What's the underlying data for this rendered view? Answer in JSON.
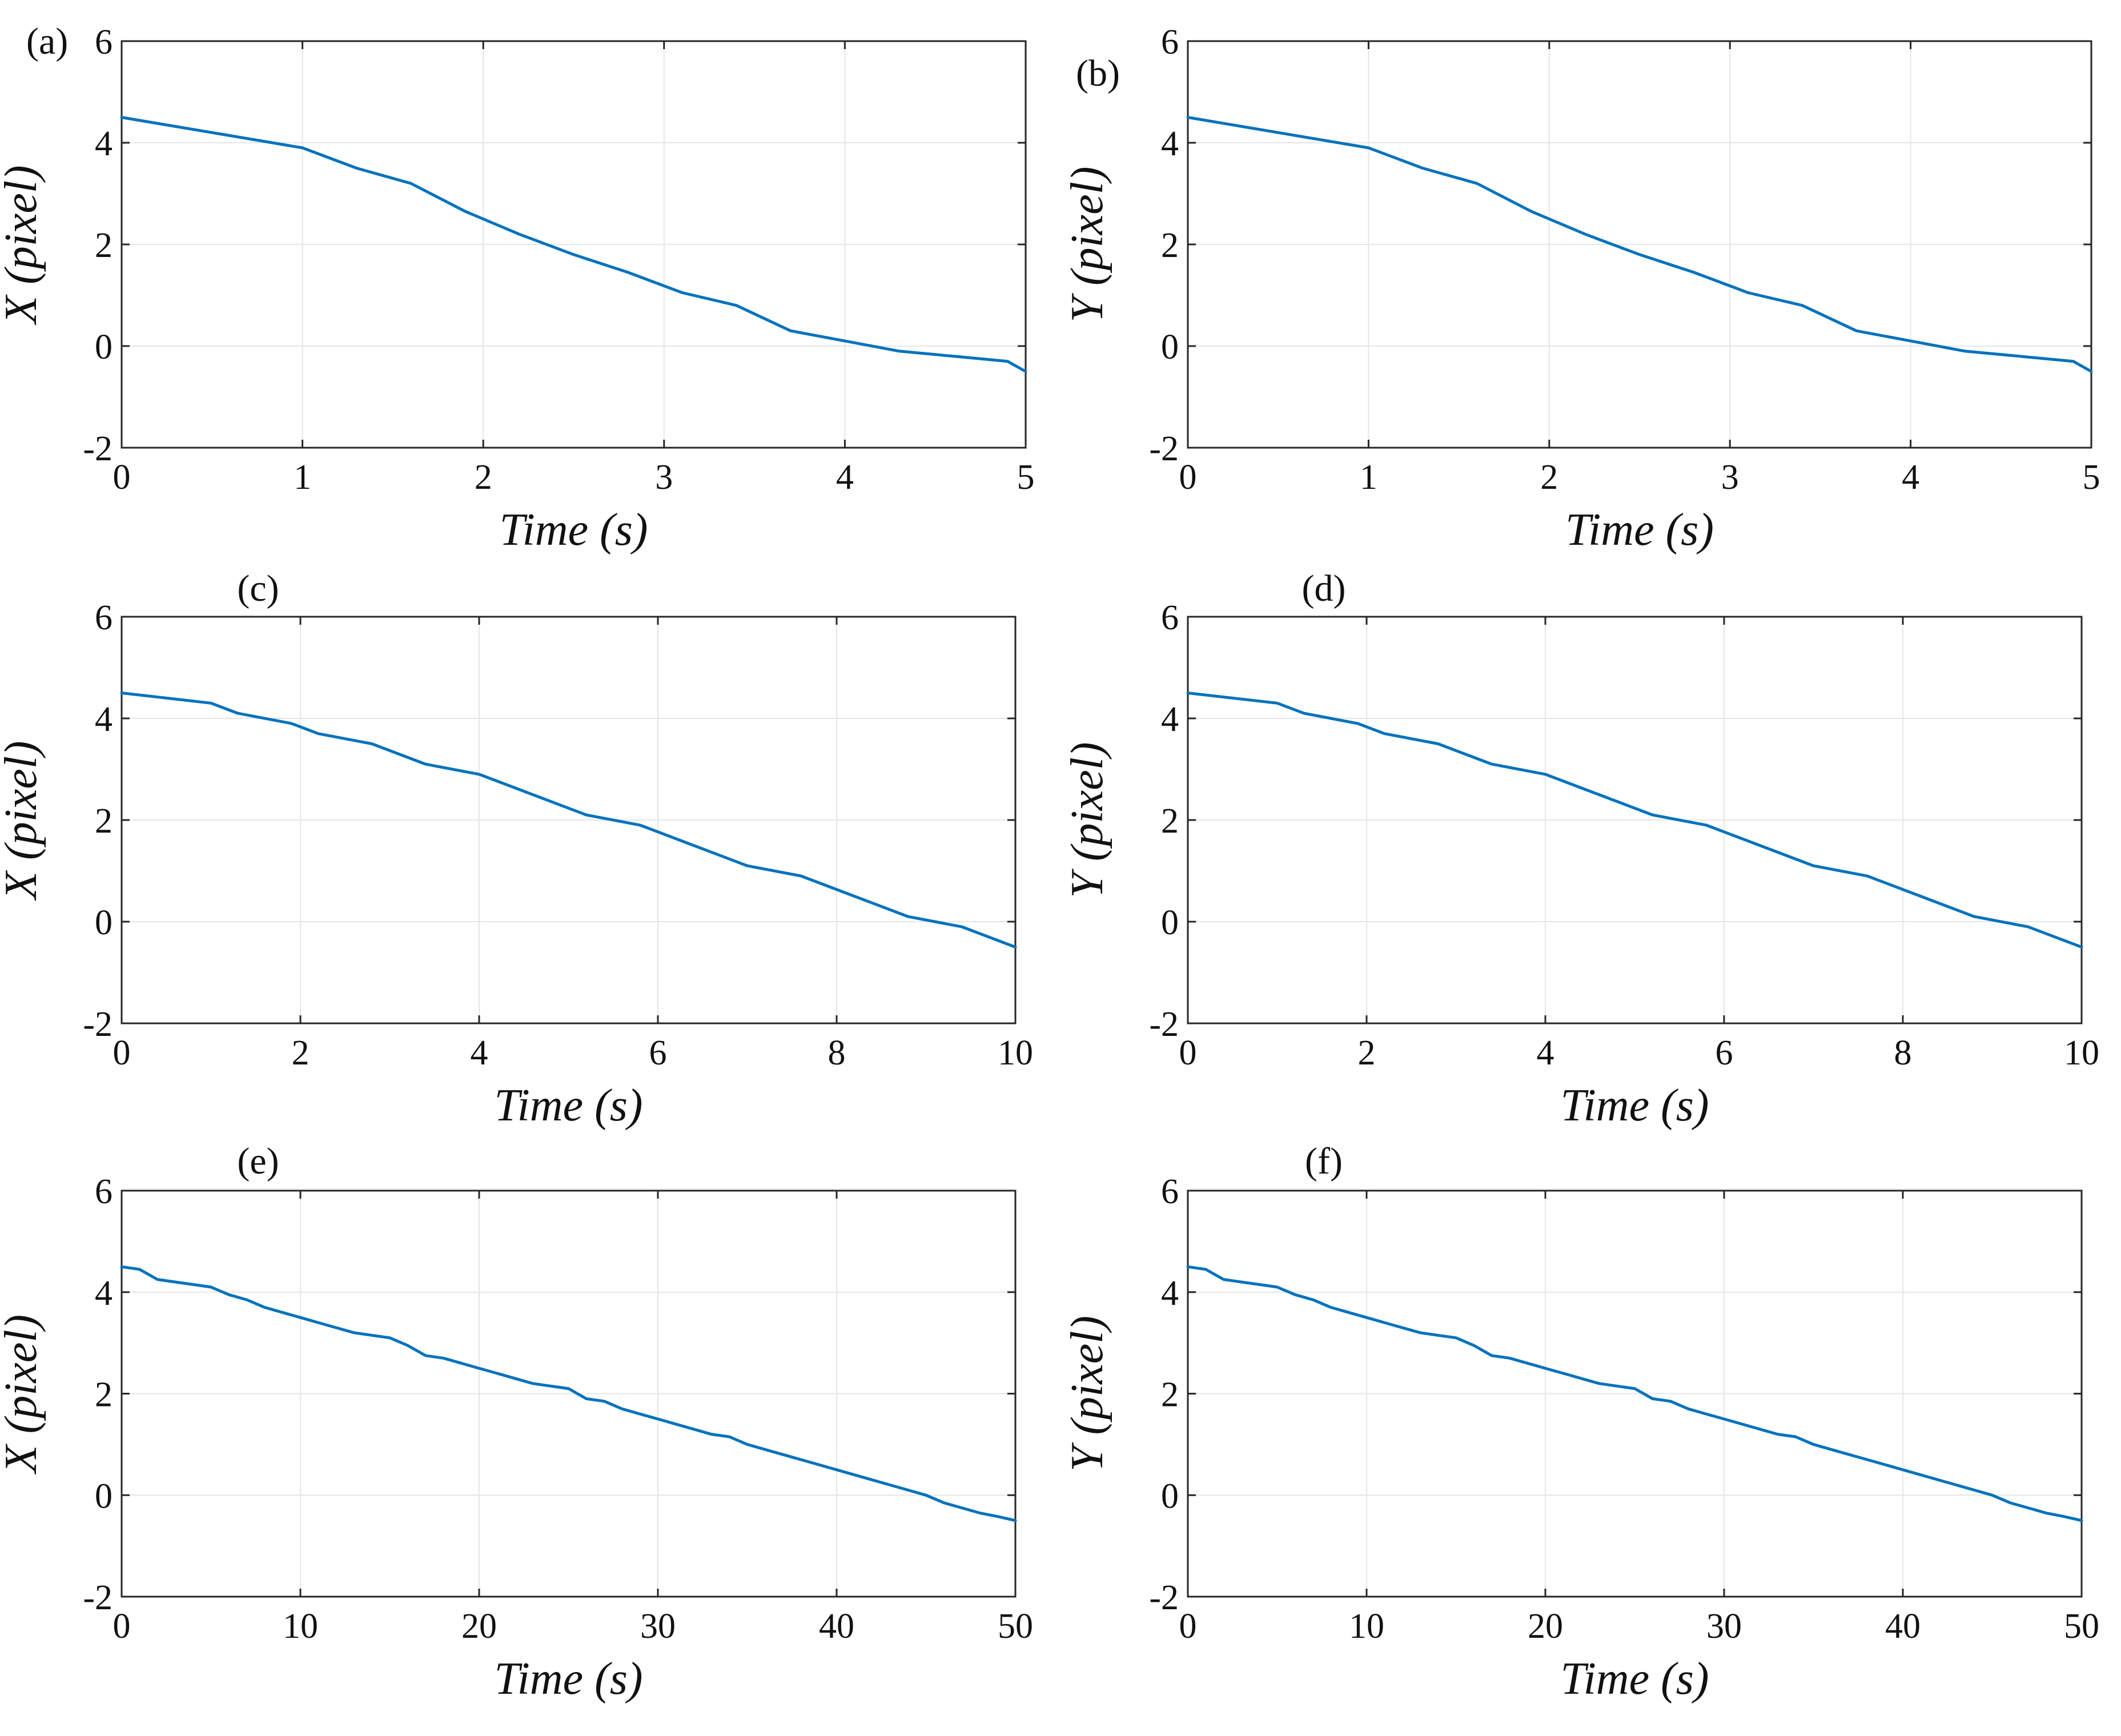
{
  "figure": {
    "line_color": "#0072BD",
    "grid_color": "#e6e6e6",
    "axis_color": "#262626"
  },
  "chart_data": [
    {
      "type": "line",
      "panel_label": "(a)",
      "xlabel": "Time (s)",
      "ylabel": "X (pixel)",
      "xlim": [
        0,
        5
      ],
      "ylim": [
        -2,
        6
      ],
      "xticks": [
        0,
        1,
        2,
        3,
        4,
        5
      ],
      "yticks": [
        -2,
        0,
        2,
        4,
        6
      ],
      "series": [
        {
          "name": "X",
          "x": [
            0,
            0.5,
            1,
            1.3,
            1.6,
            1.9,
            2.2,
            2.5,
            2.8,
            3.1,
            3.4,
            3.7,
            4.0,
            4.3,
            4.6,
            4.9,
            5.0
          ],
          "y": [
            4.5,
            4.2,
            3.9,
            3.5,
            3.2,
            2.65,
            2.2,
            1.8,
            1.45,
            1.05,
            0.8,
            0.3,
            0.1,
            -0.1,
            -0.2,
            -0.3,
            -0.5
          ]
        }
      ]
    },
    {
      "type": "line",
      "panel_label": "(b)",
      "xlabel": "Time (s)",
      "ylabel": "Y (pixel)",
      "xlim": [
        0,
        5
      ],
      "ylim": [
        -2,
        6
      ],
      "xticks": [
        0,
        1,
        2,
        3,
        4,
        5
      ],
      "yticks": [
        -2,
        0,
        2,
        4,
        6
      ],
      "series": [
        {
          "name": "Y",
          "x": [
            0,
            0.5,
            1,
            1.3,
            1.6,
            1.9,
            2.2,
            2.5,
            2.8,
            3.1,
            3.4,
            3.7,
            4.0,
            4.3,
            4.6,
            4.9,
            5.0
          ],
          "y": [
            4.5,
            4.2,
            3.9,
            3.5,
            3.2,
            2.65,
            2.2,
            1.8,
            1.45,
            1.05,
            0.8,
            0.3,
            0.1,
            -0.1,
            -0.2,
            -0.3,
            -0.5
          ]
        }
      ]
    },
    {
      "type": "line",
      "panel_label": "(c)",
      "xlabel": "Time (s)",
      "ylabel": "X (pixel)",
      "xlim": [
        0,
        10
      ],
      "ylim": [
        -2,
        6
      ],
      "xticks": [
        0,
        2,
        4,
        6,
        8,
        10
      ],
      "yticks": [
        -2,
        0,
        2,
        4,
        6
      ],
      "series": [
        {
          "name": "X",
          "x": [
            0,
            1,
            1.3,
            1.9,
            2.2,
            2.8,
            3.4,
            4.0,
            4.6,
            5.2,
            5.8,
            6.4,
            7.0,
            7.6,
            8.2,
            8.8,
            9.4,
            10.0
          ],
          "y": [
            4.5,
            4.3,
            4.1,
            3.9,
            3.7,
            3.5,
            3.1,
            2.9,
            2.5,
            2.1,
            1.9,
            1.5,
            1.1,
            0.9,
            0.5,
            0.1,
            -0.1,
            -0.5
          ]
        }
      ]
    },
    {
      "type": "line",
      "panel_label": "(d)",
      "xlabel": "Time (s)",
      "ylabel": "Y (pixel)",
      "xlim": [
        0,
        10
      ],
      "ylim": [
        -2,
        6
      ],
      "xticks": [
        0,
        2,
        4,
        6,
        8,
        10
      ],
      "yticks": [
        -2,
        0,
        2,
        4,
        6
      ],
      "series": [
        {
          "name": "Y",
          "x": [
            0,
            1,
            1.3,
            1.9,
            2.2,
            2.8,
            3.4,
            4.0,
            4.6,
            5.2,
            5.8,
            6.4,
            7.0,
            7.6,
            8.2,
            8.8,
            9.4,
            10.0
          ],
          "y": [
            4.5,
            4.3,
            4.1,
            3.9,
            3.7,
            3.5,
            3.1,
            2.9,
            2.5,
            2.1,
            1.9,
            1.5,
            1.1,
            0.9,
            0.5,
            0.1,
            -0.1,
            -0.5
          ]
        }
      ]
    },
    {
      "type": "line",
      "panel_label": "(e)",
      "xlabel": "Time (s)",
      "ylabel": "X (pixel)",
      "xlim": [
        0,
        50
      ],
      "ylim": [
        -2,
        6
      ],
      "xticks": [
        0,
        10,
        20,
        30,
        40,
        50
      ],
      "yticks": [
        -2,
        0,
        2,
        4,
        6
      ],
      "series": [
        {
          "name": "X",
          "x": [
            0,
            1,
            2,
            3,
            4,
            5,
            6,
            7,
            8,
            9,
            10,
            11,
            12,
            13,
            14,
            15,
            16,
            17,
            18,
            19,
            20,
            21,
            22,
            23,
            24,
            25,
            26,
            27,
            28,
            29,
            30,
            31,
            32,
            33,
            34,
            35,
            36,
            37,
            38,
            39,
            40,
            41,
            42,
            43,
            44,
            45,
            46,
            47,
            48,
            49,
            50
          ],
          "y": [
            4.5,
            4.45,
            4.25,
            4.2,
            4.15,
            4.1,
            3.95,
            3.85,
            3.7,
            3.6,
            3.5,
            3.4,
            3.3,
            3.2,
            3.15,
            3.1,
            2.95,
            2.75,
            2.7,
            2.6,
            2.5,
            2.4,
            2.3,
            2.2,
            2.15,
            2.1,
            1.9,
            1.85,
            1.7,
            1.6,
            1.5,
            1.4,
            1.3,
            1.2,
            1.15,
            1.0,
            0.9,
            0.8,
            0.7,
            0.6,
            0.5,
            0.4,
            0.3,
            0.2,
            0.1,
            0.0,
            -0.15,
            -0.25,
            -0.35,
            -0.42,
            -0.5
          ]
        }
      ]
    },
    {
      "type": "line",
      "panel_label": "(f)",
      "xlabel": "Time (s)",
      "ylabel": "Y (pixel)",
      "xlim": [
        0,
        50
      ],
      "ylim": [
        -2,
        6
      ],
      "xticks": [
        0,
        10,
        20,
        30,
        40,
        50
      ],
      "yticks": [
        -2,
        0,
        2,
        4,
        6
      ],
      "series": [
        {
          "name": "Y",
          "x": [
            0,
            1,
            2,
            3,
            4,
            5,
            6,
            7,
            8,
            9,
            10,
            11,
            12,
            13,
            14,
            15,
            16,
            17,
            18,
            19,
            20,
            21,
            22,
            23,
            24,
            25,
            26,
            27,
            28,
            29,
            30,
            31,
            32,
            33,
            34,
            35,
            36,
            37,
            38,
            39,
            40,
            41,
            42,
            43,
            44,
            45,
            46,
            47,
            48,
            49,
            50
          ],
          "y": [
            4.5,
            4.45,
            4.25,
            4.2,
            4.15,
            4.1,
            3.95,
            3.85,
            3.7,
            3.6,
            3.5,
            3.4,
            3.3,
            3.2,
            3.15,
            3.1,
            2.95,
            2.75,
            2.7,
            2.6,
            2.5,
            2.4,
            2.3,
            2.2,
            2.15,
            2.1,
            1.9,
            1.85,
            1.7,
            1.6,
            1.5,
            1.4,
            1.3,
            1.2,
            1.15,
            1.0,
            0.9,
            0.8,
            0.7,
            0.6,
            0.5,
            0.4,
            0.3,
            0.2,
            0.1,
            0.0,
            -0.15,
            -0.25,
            -0.35,
            -0.42,
            -0.5
          ]
        }
      ]
    }
  ]
}
